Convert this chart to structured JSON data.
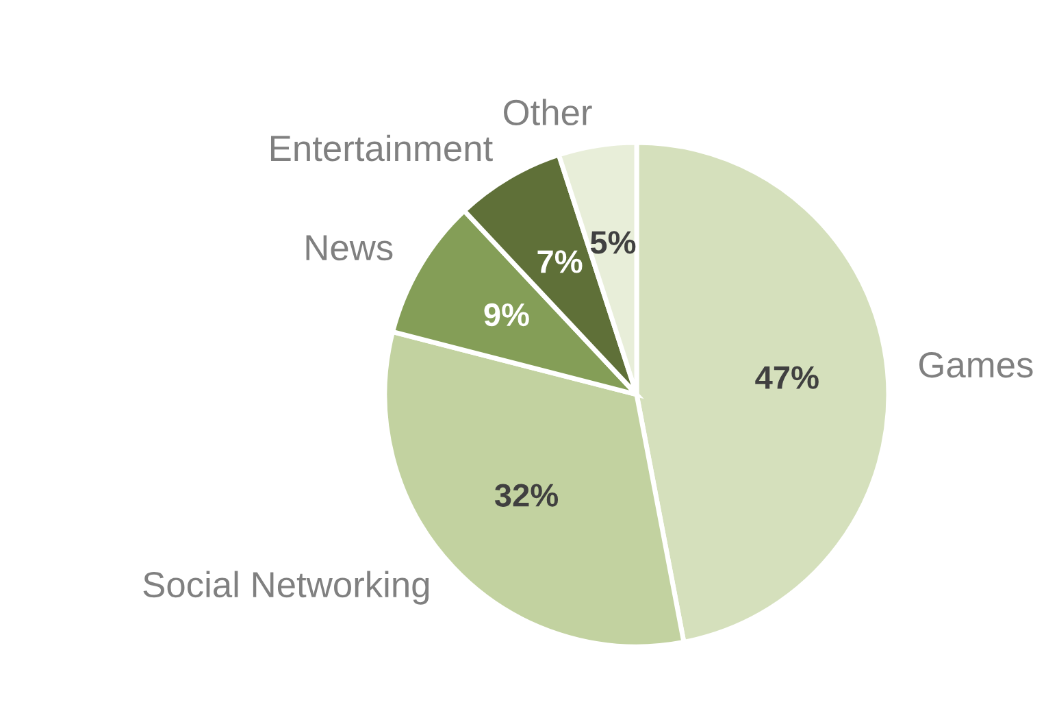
{
  "chart_data": {
    "type": "pie",
    "categories": [
      "Games",
      "Social Networking",
      "News",
      "Entertainment",
      "Other"
    ],
    "values": [
      47,
      32,
      9,
      7,
      5
    ],
    "value_labels": [
      "47%",
      "32%",
      "9%",
      "7%",
      "5%"
    ],
    "colors": [
      "#d5e0bc",
      "#c2d2a0",
      "#849e57",
      "#5f7038",
      "#e8eed9"
    ]
  }
}
